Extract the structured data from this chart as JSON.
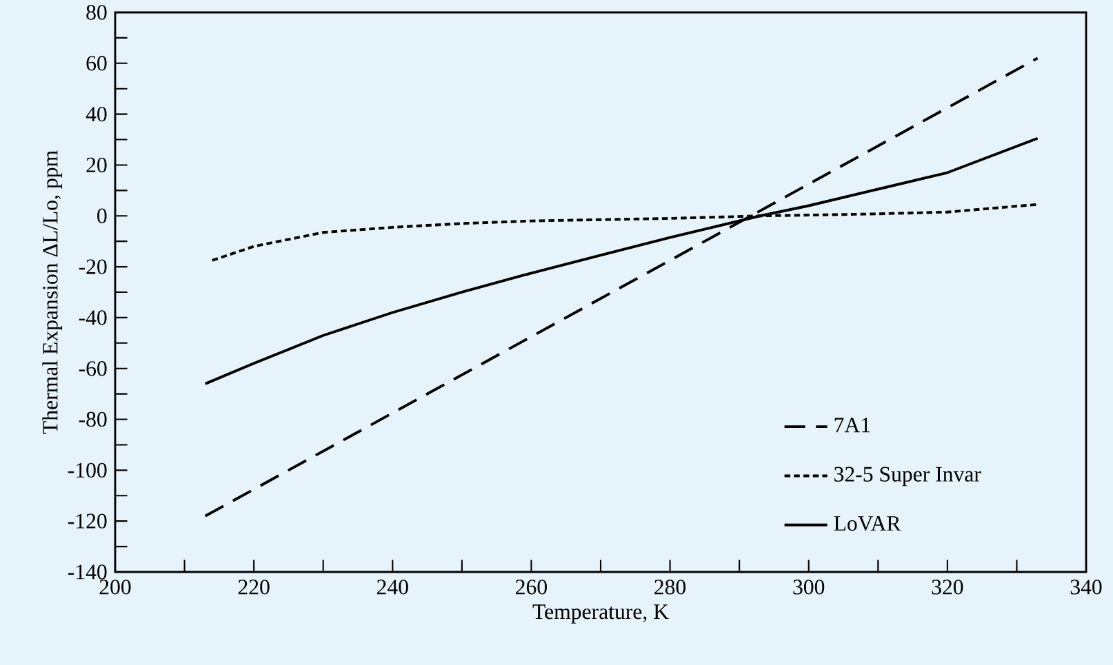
{
  "chart_data": {
    "type": "line",
    "xlabel": "Temperature, K",
    "ylabel": "Thermal Expansion ΔL/Lo, ppm",
    "xlim": [
      200,
      340
    ],
    "xticks": [
      200,
      220,
      240,
      260,
      280,
      300,
      320,
      340
    ],
    "ylim": [
      -140,
      80
    ],
    "yticks": [
      -140,
      -120,
      -100,
      -80,
      -60,
      -40,
      -20,
      0,
      20,
      40,
      60,
      80
    ],
    "grid": false,
    "legend": "bottom right",
    "marker": "none",
    "series": [
      {
        "name": "7A1",
        "color": "#000000",
        "line_style": "dashed",
        "x": [
          213,
          333
        ],
        "values": [
          -118,
          62
        ]
      },
      {
        "name": "32-5 Super Invar",
        "color": "#000000",
        "line_style": "dotted",
        "x": [
          214,
          220,
          230,
          240,
          250,
          260,
          270,
          280,
          293,
          300,
          310,
          320,
          333
        ],
        "values": [
          -17.5,
          -12,
          -6.5,
          -4.5,
          -3,
          -2,
          -1.5,
          -1,
          0,
          0.3,
          0.8,
          1.5,
          4.5
        ]
      },
      {
        "name": "LoVAR",
        "color": "#000000",
        "line_style": "solid",
        "x": [
          213,
          220,
          230,
          240,
          250,
          260,
          270,
          280,
          293,
          300,
          310,
          320,
          333
        ],
        "values": [
          -66,
          -58,
          -47,
          -38,
          -30,
          -22.5,
          -15.5,
          -8.5,
          0,
          4,
          10.5,
          17,
          30.5
        ]
      }
    ]
  }
}
